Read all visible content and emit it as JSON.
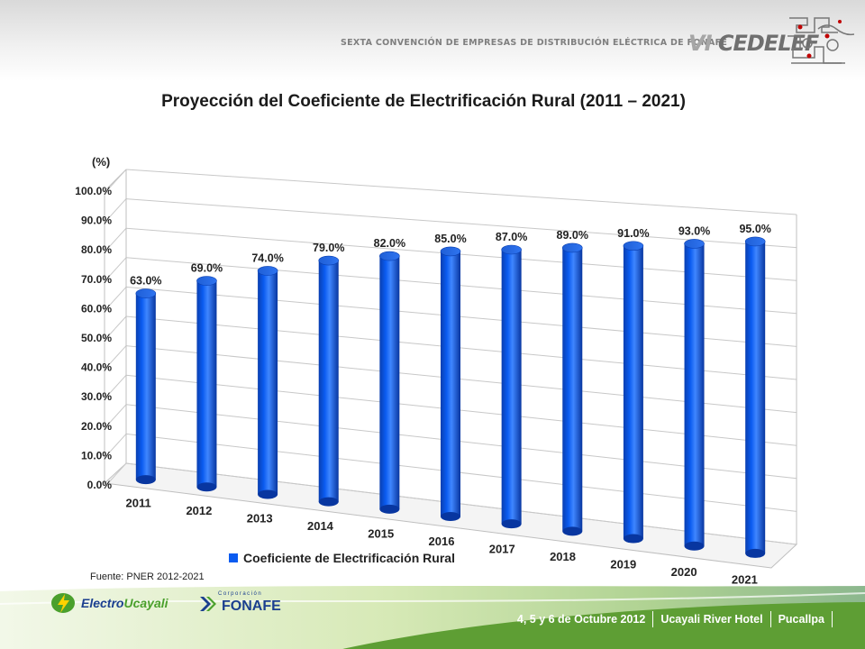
{
  "header": {
    "convention": "SEXTA CONVENCIÓN DE EMPRESAS DE DISTRIBUCIÓN ELÉCTRICA DE FONAFE",
    "cedelef_roman": "VI",
    "cedelef_name": "CEDELEF"
  },
  "slide_title": "Proyección del Coeficiente de Electrificación Rural (2011 – 2021)",
  "source": "Fuente: PNER 2012-2021",
  "footer": {
    "electro_part1": "Electro",
    "electro_part2": "Ucayali",
    "fonafe_corp": "Corporación",
    "fonafe_name": "FONAFE",
    "dates": "4, 5 y 6 de Octubre 2012",
    "venue": "Ucayali River Hotel",
    "city": "Pucallpa"
  },
  "colors": {
    "bar": "#0a5bf0",
    "footer_green": "#8dc63f",
    "footer_dark": "#1f7a3a"
  },
  "chart_data": {
    "type": "bar",
    "title": "",
    "ylabel": "(%)",
    "xlabel": "",
    "ylim": [
      0,
      100
    ],
    "yticks": [
      "0.0%",
      "10.0%",
      "20.0%",
      "30.0%",
      "40.0%",
      "50.0%",
      "60.0%",
      "70.0%",
      "80.0%",
      "90.0%",
      "100.0%"
    ],
    "categories": [
      "2011",
      "2012",
      "2013",
      "2014",
      "2015",
      "2016",
      "2017",
      "2018",
      "2019",
      "2020",
      "2021"
    ],
    "series": [
      {
        "name": "Coeficiente de Electrificación  Rural",
        "values": [
          63.0,
          69.0,
          74.0,
          79.0,
          82.0,
          85.0,
          87.0,
          89.0,
          91.0,
          93.0,
          95.0
        ],
        "labels": [
          "63.0%",
          "69.0%",
          "74.0%",
          "79.0%",
          "82.0%",
          "85.0%",
          "87.0%",
          "89.0%",
          "91.0%",
          "93.0%",
          "95.0%"
        ]
      }
    ],
    "legend_position": "bottom",
    "grid": true,
    "style": "3d-cylinder"
  }
}
